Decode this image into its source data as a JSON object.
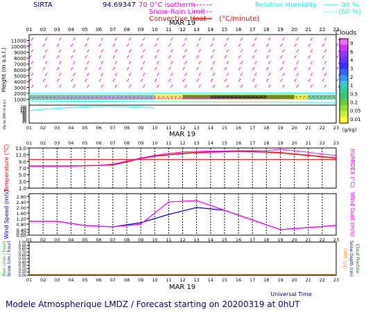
{
  "header": {
    "station": "SIRTA",
    "coords": "94.69347",
    "time_label": "70",
    "legend": {
      "isotherm": "0°C isotherm",
      "snow_rain": "Snow-Rain Limit",
      "convective": "Convective Heat",
      "convective_unit": "(°C/minute)",
      "rh_label": "Relative Humidity",
      "rh90": "90 %",
      "rh60": "(60 %)"
    }
  },
  "colors": {
    "magenta": "#ff00ff",
    "cyan": "#00ffff",
    "red": "#ff0000",
    "blue": "#0000cc",
    "green": "#00cc00",
    "orange": "#ff8800",
    "darkgreen": "#006600",
    "heading": "#000080"
  },
  "hours": [
    "01",
    "02",
    "03",
    "04",
    "05",
    "06",
    "07",
    "08",
    "09",
    "10",
    "11",
    "12",
    "13",
    "14",
    "15",
    "16",
    "17",
    "18",
    "19",
    "20",
    "21",
    "22",
    "23"
  ],
  "date_label": "MAR 19",
  "footer": {
    "universal_time": "Universal Time",
    "title": "Modele Atmospherique LMDZ / Forecast starting on 20200319 at 0hUT"
  },
  "chart_data": [
    {
      "type": "heatmap",
      "name": "clouds",
      "ylabel": "Height (m a.s.l.)",
      "ylabel_low": "Up to 200 m a.s.l.",
      "ylim": [
        0,
        12000
      ],
      "yticks": [
        "1000",
        "2000",
        "3000",
        "4000",
        "5000",
        "6000",
        "7000",
        "8000",
        "9000",
        "10000",
        "11000"
      ],
      "ylow_ticks": [
        "10",
        "20",
        "30",
        "40",
        "50",
        "60",
        "70",
        "80",
        "90",
        "100",
        "110",
        "120",
        "130",
        "140",
        "150"
      ],
      "colorbar": {
        "title": "Clouds",
        "unit": "(g/kg)",
        "labels": [
          "9",
          "6",
          "4",
          "3",
          "2",
          "1",
          "0.5",
          "0.2",
          "0.05",
          "0.01"
        ],
        "colors": [
          "#ff66ff",
          "#cc33ff",
          "#9933ff",
          "#6633ff",
          "#3333ff",
          "#3366ff",
          "#3399ff",
          "#33cccc",
          "#33cc99",
          "#33cc66",
          "#66cc33",
          "#99dd33",
          "#ccee33",
          "#ffff33"
        ]
      }
    },
    {
      "type": "line",
      "name": "temperature",
      "ylabel": "Temperature (°C)",
      "y2label": "HUMIDEX (°C)",
      "ylim": [
        1,
        13
      ],
      "yticks": [
        "1.0",
        "3.0",
        "5.0",
        "7.0",
        "9.0",
        "11.0",
        "13.0"
      ],
      "x": [
        1,
        2,
        3,
        4,
        5,
        6,
        7,
        8,
        9,
        10,
        11,
        12,
        13,
        14,
        15,
        16,
        17,
        18,
        19,
        20,
        21,
        22,
        23
      ],
      "series": [
        {
          "values": [
            7.6,
            7.6,
            7.6,
            7.6,
            7.7,
            7.8,
            8.0,
            8.9,
            9.9,
            10.6,
            11.0,
            11.4,
            11.6,
            11.8,
            11.9,
            12.0,
            11.9,
            11.8,
            11.6,
            11.2,
            10.8,
            10.4,
            10.0
          ],
          "color": "#ff0000"
        },
        {
          "values": [
            7.6,
            7.6,
            7.6,
            7.6,
            7.7,
            7.8,
            8.2,
            9.1,
            10.0,
            10.8,
            11.4,
            11.8,
            12.0,
            12.1,
            12.1,
            12.2,
            12.2,
            12.2,
            12.6,
            12.2,
            11.7,
            11.2,
            10.8
          ],
          "color": "#ff00ff"
        }
      ]
    },
    {
      "type": "line",
      "name": "wind",
      "ylabel": "Wind Speed (m/s)",
      "y2label": "Wind Gust (m/s)",
      "ylim": [
        0,
        3.0
      ],
      "yticks": [
        "0.00",
        "0.20",
        "0.40",
        "0.80",
        "1.20",
        "1.60",
        "2.00",
        "2.40",
        "2.80"
      ],
      "x": [
        1,
        3,
        5,
        7,
        9,
        11,
        13,
        15,
        19,
        23
      ],
      "series": [
        {
          "values": [
            1.0,
            1.0,
            0.7,
            0.6,
            0.9,
            1.5,
            2.0,
            1.8,
            0.4,
            0.7
          ],
          "color": "#0000cc"
        },
        {
          "values": [
            1.0,
            1.0,
            0.7,
            0.6,
            0.8,
            2.4,
            2.5,
            1.8,
            0.4,
            0.7
          ],
          "color": "#ff00ff"
        }
      ]
    },
    {
      "type": "line",
      "name": "rain",
      "ylabel_left": "Rain (mm / hour)",
      "ylabel_left2": "Snow (cm / hour)",
      "y2label": "CAPE (J/g)",
      "y2label_b": "Snow Depth (cm)",
      "y2label_c": "Cloud Fraction",
      "ylim": [
        0,
        1.0
      ],
      "yticks": [
        "0.00",
        "0.10",
        "0.20",
        "0.30",
        "0.40",
        "0.50",
        "0.60",
        "0.70",
        "0.80",
        "0.90",
        "1.00"
      ]
    }
  ]
}
